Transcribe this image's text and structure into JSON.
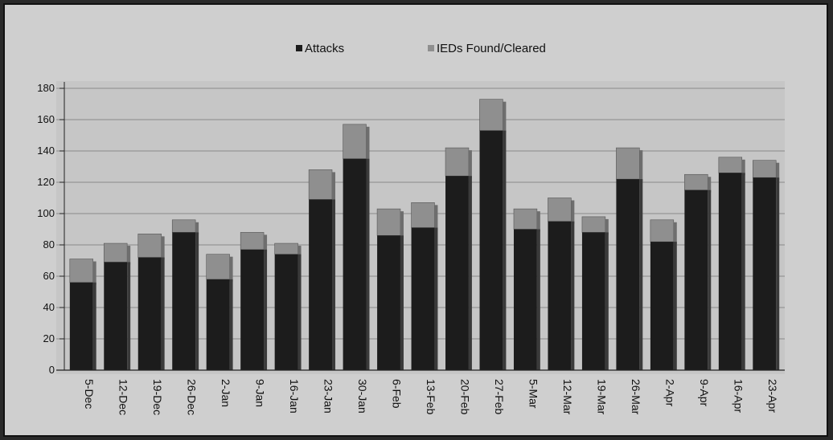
{
  "chart_data": {
    "type": "bar",
    "stacked": true,
    "title": "",
    "xlabel": "",
    "ylabel": "",
    "ylim": [
      0,
      180
    ],
    "yticks": [
      0,
      20,
      40,
      60,
      80,
      100,
      120,
      140,
      160,
      180
    ],
    "grid": true,
    "legend": "top-center",
    "categories": [
      "5-Dec",
      "12-Dec",
      "19-Dec",
      "26-Dec",
      "2-Jan",
      "9-Jan",
      "16-Jan",
      "23-Jan",
      "30-Jan",
      "6-Feb",
      "13-Feb",
      "20-Feb",
      "27-Feb",
      "5-Mar",
      "12-Mar",
      "19-Mar",
      "26-Mar",
      "2-Apr",
      "9-Apr",
      "16-Apr",
      "23-Apr"
    ],
    "series": [
      {
        "name": "Attacks",
        "color": "#1c1c1c",
        "values": [
          56,
          69,
          72,
          88,
          58,
          77,
          74,
          109,
          135,
          86,
          91,
          124,
          153,
          90,
          95,
          88,
          122,
          82,
          115,
          126,
          123
        ]
      },
      {
        "name": "IEDs Found/Cleared",
        "color": "#8f8f8f",
        "values": [
          15,
          12,
          15,
          8,
          16,
          11,
          7,
          19,
          22,
          17,
          16,
          18,
          20,
          13,
          15,
          10,
          20,
          14,
          10,
          10,
          11
        ]
      }
    ]
  }
}
